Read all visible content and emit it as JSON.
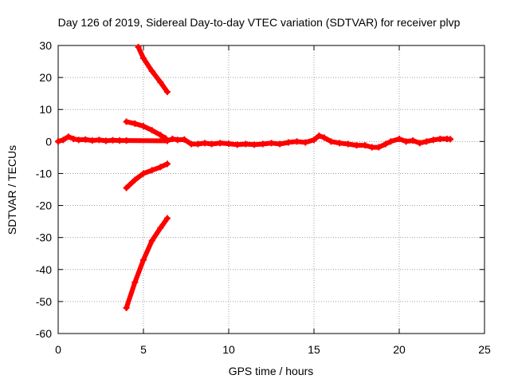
{
  "chart_data": {
    "type": "scatter",
    "title": "Day 126 of 2019, Sidereal Day-to-day VTEC variation (SDTVAR) for receiver plvp",
    "xlabel": "GPS time / hours",
    "ylabel": "SDTVAR / TECUs",
    "xlim": [
      0,
      25
    ],
    "ylim": [
      -60,
      30
    ],
    "xticks": [
      0,
      5,
      10,
      15,
      20,
      25
    ],
    "yticks": [
      -60,
      -50,
      -40,
      -30,
      -20,
      -10,
      0,
      10,
      20,
      30
    ],
    "grid": true,
    "marker_color": "#ff0000",
    "series": [
      {
        "name": "near-zero band",
        "points": [
          [
            0.0,
            0.0
          ],
          [
            0.3,
            0.5
          ],
          [
            0.6,
            1.5
          ],
          [
            0.9,
            0.8
          ],
          [
            1.2,
            0.5
          ],
          [
            1.6,
            0.6
          ],
          [
            2.0,
            0.3
          ],
          [
            2.4,
            0.5
          ],
          [
            2.8,
            0.2
          ],
          [
            3.2,
            0.4
          ],
          [
            3.6,
            0.3
          ],
          [
            4.0,
            0.3
          ],
          [
            6.4,
            0.2
          ],
          [
            6.7,
            0.8
          ],
          [
            7.0,
            0.5
          ],
          [
            7.4,
            0.6
          ],
          [
            7.8,
            -0.8
          ],
          [
            8.2,
            -0.8
          ],
          [
            8.6,
            -0.5
          ],
          [
            9.0,
            -0.8
          ],
          [
            9.5,
            -0.5
          ],
          [
            10.0,
            -0.7
          ],
          [
            10.5,
            -1.0
          ],
          [
            11.0,
            -0.8
          ],
          [
            11.5,
            -1.0
          ],
          [
            12.0,
            -0.8
          ],
          [
            12.5,
            -0.5
          ],
          [
            13.0,
            -0.8
          ],
          [
            13.5,
            -0.3
          ],
          [
            14.0,
            0.0
          ],
          [
            14.5,
            -0.3
          ],
          [
            15.0,
            0.5
          ],
          [
            15.3,
            1.8
          ],
          [
            15.6,
            1.2
          ],
          [
            16.0,
            0.0
          ],
          [
            16.5,
            -0.5
          ],
          [
            17.0,
            -0.8
          ],
          [
            17.5,
            -1.2
          ],
          [
            18.0,
            -1.2
          ],
          [
            18.4,
            -1.8
          ],
          [
            18.8,
            -1.8
          ],
          [
            19.2,
            -0.8
          ],
          [
            19.5,
            0.0
          ],
          [
            20.0,
            0.8
          ],
          [
            20.4,
            0.0
          ],
          [
            20.8,
            0.3
          ],
          [
            21.2,
            -0.5
          ],
          [
            21.6,
            0.0
          ],
          [
            22.0,
            0.5
          ],
          [
            22.4,
            0.8
          ],
          [
            22.8,
            0.8
          ],
          [
            23.0,
            0.7
          ]
        ]
      },
      {
        "name": "upper arc",
        "points": [
          [
            4.7,
            29.5
          ],
          [
            5.0,
            26.0
          ],
          [
            5.5,
            22.0
          ],
          [
            6.0,
            18.5
          ],
          [
            6.4,
            15.5
          ]
        ]
      },
      {
        "name": "upper-middle arc",
        "points": [
          [
            4.0,
            6.2
          ],
          [
            4.5,
            5.6
          ],
          [
            5.0,
            4.8
          ],
          [
            5.5,
            3.5
          ],
          [
            6.0,
            2.0
          ],
          [
            6.3,
            1.0
          ]
        ]
      },
      {
        "name": "lower-middle arc",
        "points": [
          [
            4.0,
            -14.5
          ],
          [
            4.5,
            -12.0
          ],
          [
            5.0,
            -10.0
          ],
          [
            5.5,
            -9.0
          ],
          [
            6.0,
            -8.0
          ],
          [
            6.4,
            -7.0
          ]
        ]
      },
      {
        "name": "lower arc",
        "points": [
          [
            4.0,
            -52.0
          ],
          [
            4.5,
            -44.0
          ],
          [
            5.0,
            -37.0
          ],
          [
            5.5,
            -31.0
          ],
          [
            6.0,
            -27.0
          ],
          [
            6.4,
            -24.0
          ]
        ]
      }
    ]
  }
}
